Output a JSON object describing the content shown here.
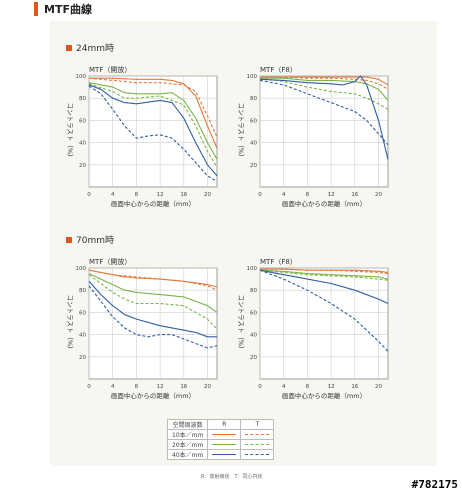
{
  "page": {
    "title": "MTF曲線",
    "sections": [
      "24mm時",
      "70mm時"
    ],
    "watermark": "#782175"
  },
  "colors": {
    "accent": "#e0571a",
    "r10": "#e07a3c",
    "r20": "#7ab648",
    "r40": "#2f5ea3"
  },
  "chart_data": [
    {
      "type": "line",
      "title": "MTF（開放）",
      "xlabel": "画面中心からの距離（mm）",
      "ylabel": "コントラスト（%）",
      "xlim": [
        0,
        21.6
      ],
      "ylim": [
        0,
        100
      ],
      "xticks": [
        0,
        4,
        8,
        12,
        16,
        20
      ],
      "yticks": [
        20,
        40,
        60,
        80,
        100
      ],
      "series": [
        {
          "name": "10本／mm R",
          "color": "#e07a3c",
          "dash": false,
          "points": [
            [
              0,
              98
            ],
            [
              4,
              98
            ],
            [
              8,
              97
            ],
            [
              12,
              97
            ],
            [
              14,
              96
            ],
            [
              16,
              93
            ],
            [
              18,
              82
            ],
            [
              20,
              55
            ],
            [
              21.6,
              35
            ]
          ]
        },
        {
          "name": "10本／mm T",
          "color": "#e07a3c",
          "dash": true,
          "points": [
            [
              0,
              98
            ],
            [
              4,
              96
            ],
            [
              8,
              94
            ],
            [
              12,
              94
            ],
            [
              16,
              92
            ],
            [
              18,
              86
            ],
            [
              20,
              64
            ],
            [
              21.6,
              45
            ]
          ]
        },
        {
          "name": "20本／mm R",
          "color": "#7ab648",
          "dash": false,
          "points": [
            [
              0,
              94
            ],
            [
              4,
              90
            ],
            [
              6,
              85
            ],
            [
              8,
              84
            ],
            [
              12,
              84
            ],
            [
              14,
              85
            ],
            [
              16,
              78
            ],
            [
              18,
              62
            ],
            [
              20,
              40
            ],
            [
              21.6,
              25
            ]
          ]
        },
        {
          "name": "20本／mm T",
          "color": "#7ab648",
          "dash": true,
          "points": [
            [
              0,
              93
            ],
            [
              4,
              86
            ],
            [
              6,
              80
            ],
            [
              8,
              80
            ],
            [
              12,
              82
            ],
            [
              16,
              74
            ],
            [
              18,
              55
            ],
            [
              20,
              32
            ],
            [
              21.6,
              18
            ]
          ]
        },
        {
          "name": "40本／mm R",
          "color": "#2f5ea3",
          "dash": false,
          "points": [
            [
              0,
              92
            ],
            [
              2,
              88
            ],
            [
              4,
              80
            ],
            [
              6,
              76
            ],
            [
              8,
              75
            ],
            [
              12,
              78
            ],
            [
              14,
              76
            ],
            [
              16,
              62
            ],
            [
              18,
              40
            ],
            [
              20,
              20
            ],
            [
              21.6,
              10
            ]
          ]
        },
        {
          "name": "40本／mm T",
          "color": "#2f5ea3",
          "dash": true,
          "points": [
            [
              0,
              91
            ],
            [
              2,
              84
            ],
            [
              4,
              70
            ],
            [
              6,
              55
            ],
            [
              8,
              44
            ],
            [
              10,
              46
            ],
            [
              12,
              47
            ],
            [
              14,
              44
            ],
            [
              16,
              34
            ],
            [
              18,
              22
            ],
            [
              20,
              10
            ],
            [
              21.6,
              5
            ]
          ]
        }
      ]
    },
    {
      "type": "line",
      "title": "MTF（F8）",
      "xlabel": "画面中心からの距離（mm）",
      "ylabel": "コントラスト（%）",
      "xlim": [
        0,
        21.6
      ],
      "ylim": [
        0,
        100
      ],
      "xticks": [
        0,
        4,
        8,
        12,
        16,
        20
      ],
      "yticks": [
        20,
        40,
        60,
        80,
        100
      ],
      "series": [
        {
          "name": "10本／mm R",
          "color": "#e07a3c",
          "dash": false,
          "points": [
            [
              0,
              99
            ],
            [
              4,
              99
            ],
            [
              8,
              99
            ],
            [
              12,
              99
            ],
            [
              16,
              99
            ],
            [
              18,
              99
            ],
            [
              20,
              97
            ],
            [
              21.6,
              92
            ]
          ]
        },
        {
          "name": "10本／mm T",
          "color": "#e07a3c",
          "dash": true,
          "points": [
            [
              0,
              99
            ],
            [
              4,
              99
            ],
            [
              8,
              98
            ],
            [
              12,
              98
            ],
            [
              16,
              97
            ],
            [
              18,
              96
            ],
            [
              20,
              93
            ],
            [
              21.6,
              88
            ]
          ]
        },
        {
          "name": "20本／mm R",
          "color": "#7ab648",
          "dash": false,
          "points": [
            [
              0,
              98
            ],
            [
              4,
              98
            ],
            [
              8,
              96
            ],
            [
              12,
              96
            ],
            [
              16,
              95
            ],
            [
              18,
              93
            ],
            [
              20,
              88
            ],
            [
              21.6,
              78
            ]
          ]
        },
        {
          "name": "20本／mm T",
          "color": "#7ab648",
          "dash": true,
          "points": [
            [
              0,
              98
            ],
            [
              4,
              95
            ],
            [
              8,
              90
            ],
            [
              12,
              86
            ],
            [
              16,
              84
            ],
            [
              18,
              80
            ],
            [
              20,
              75
            ],
            [
              21.6,
              70
            ]
          ]
        },
        {
          "name": "40本／mm R",
          "color": "#2f5ea3",
          "dash": false,
          "points": [
            [
              0,
              97
            ],
            [
              4,
              96
            ],
            [
              8,
              94
            ],
            [
              12,
              93
            ],
            [
              14,
              92
            ],
            [
              16,
              95
            ],
            [
              17,
              100
            ],
            [
              18,
              92
            ],
            [
              20,
              60
            ],
            [
              21.6,
              25
            ]
          ]
        },
        {
          "name": "40本／mm T",
          "color": "#2f5ea3",
          "dash": true,
          "points": [
            [
              0,
              96
            ],
            [
              4,
              92
            ],
            [
              8,
              84
            ],
            [
              12,
              76
            ],
            [
              16,
              68
            ],
            [
              18,
              60
            ],
            [
              20,
              48
            ],
            [
              21.6,
              38
            ]
          ]
        }
      ]
    },
    {
      "type": "line",
      "title": "MTF（開放）",
      "xlabel": "画面中心からの距離（mm）",
      "ylabel": "コントラスト（%）",
      "xlim": [
        0,
        21.6
      ],
      "ylim": [
        0,
        100
      ],
      "xticks": [
        0,
        4,
        8,
        12,
        16,
        20
      ],
      "yticks": [
        20,
        40,
        60,
        80,
        100
      ],
      "series": [
        {
          "name": "10本／mm R",
          "color": "#e07a3c",
          "dash": false,
          "points": [
            [
              0,
              98
            ],
            [
              4,
              94
            ],
            [
              6,
              92
            ],
            [
              8,
              91
            ],
            [
              12,
              90
            ],
            [
              16,
              88
            ],
            [
              20,
              85
            ],
            [
              21.6,
              83
            ]
          ]
        },
        {
          "name": "10本／mm T",
          "color": "#e07a3c",
          "dash": true,
          "points": [
            [
              0,
              98
            ],
            [
              4,
              94
            ],
            [
              8,
              92
            ],
            [
              12,
              90
            ],
            [
              16,
              88
            ],
            [
              20,
              84
            ],
            [
              21.6,
              80
            ]
          ]
        },
        {
          "name": "20本／mm R",
          "color": "#7ab648",
          "dash": false,
          "points": [
            [
              0,
              95
            ],
            [
              4,
              85
            ],
            [
              6,
              80
            ],
            [
              8,
              78
            ],
            [
              12,
              76
            ],
            [
              16,
              74
            ],
            [
              20,
              66
            ],
            [
              21.6,
              60
            ]
          ]
        },
        {
          "name": "20本／mm T",
          "color": "#7ab648",
          "dash": true,
          "points": [
            [
              0,
              94
            ],
            [
              4,
              78
            ],
            [
              6,
              72
            ],
            [
              8,
              68
            ],
            [
              12,
              68
            ],
            [
              16,
              66
            ],
            [
              20,
              54
            ],
            [
              21.6,
              45
            ]
          ]
        },
        {
          "name": "40本／mm R",
          "color": "#2f5ea3",
          "dash": false,
          "points": [
            [
              0,
              88
            ],
            [
              2,
              76
            ],
            [
              4,
              66
            ],
            [
              6,
              58
            ],
            [
              8,
              54
            ],
            [
              12,
              48
            ],
            [
              16,
              44
            ],
            [
              18,
              42
            ],
            [
              20,
              38
            ],
            [
              21.6,
              38
            ]
          ]
        },
        {
          "name": "40本／mm T",
          "color": "#2f5ea3",
          "dash": true,
          "points": [
            [
              0,
              84
            ],
            [
              2,
              70
            ],
            [
              4,
              56
            ],
            [
              6,
              46
            ],
            [
              8,
              40
            ],
            [
              10,
              38
            ],
            [
              12,
              40
            ],
            [
              14,
              40
            ],
            [
              16,
              36
            ],
            [
              18,
              32
            ],
            [
              20,
              28
            ],
            [
              21.6,
              30
            ]
          ]
        }
      ]
    },
    {
      "type": "line",
      "title": "MTF（F8）",
      "xlabel": "画面中心からの距離（mm）",
      "ylabel": "コントラスト（%）",
      "xlim": [
        0,
        21.6
      ],
      "ylim": [
        0,
        100
      ],
      "xticks": [
        0,
        4,
        8,
        12,
        16,
        20
      ],
      "yticks": [
        20,
        40,
        60,
        80,
        100
      ],
      "series": [
        {
          "name": "10本／mm R",
          "color": "#e07a3c",
          "dash": false,
          "points": [
            [
              0,
              99
            ],
            [
              4,
              99
            ],
            [
              8,
              98
            ],
            [
              12,
              98
            ],
            [
              16,
              98
            ],
            [
              20,
              97
            ],
            [
              21.6,
              96
            ]
          ]
        },
        {
          "name": "10本／mm T",
          "color": "#e07a3c",
          "dash": true,
          "points": [
            [
              0,
              99
            ],
            [
              4,
              99
            ],
            [
              8,
              98
            ],
            [
              12,
              98
            ],
            [
              16,
              97
            ],
            [
              20,
              96
            ],
            [
              21.6,
              95
            ]
          ]
        },
        {
          "name": "20本／mm R",
          "color": "#7ab648",
          "dash": false,
          "points": [
            [
              0,
              98
            ],
            [
              4,
              97
            ],
            [
              8,
              95
            ],
            [
              12,
              94
            ],
            [
              16,
              93
            ],
            [
              20,
              92
            ],
            [
              21.6,
              90
            ]
          ]
        },
        {
          "name": "20本／mm T",
          "color": "#7ab648",
          "dash": true,
          "points": [
            [
              0,
              98
            ],
            [
              4,
              96
            ],
            [
              8,
              94
            ],
            [
              12,
              93
            ],
            [
              16,
              92
            ],
            [
              20,
              90
            ],
            [
              21.6,
              89
            ]
          ]
        },
        {
          "name": "40本／mm R",
          "color": "#2f5ea3",
          "dash": false,
          "points": [
            [
              0,
              98
            ],
            [
              4,
              94
            ],
            [
              8,
              90
            ],
            [
              12,
              86
            ],
            [
              16,
              80
            ],
            [
              20,
              72
            ],
            [
              21.6,
              68
            ]
          ]
        },
        {
          "name": "40本／mm T",
          "color": "#2f5ea3",
          "dash": true,
          "points": [
            [
              0,
              98
            ],
            [
              4,
              90
            ],
            [
              8,
              80
            ],
            [
              12,
              68
            ],
            [
              16,
              54
            ],
            [
              20,
              34
            ],
            [
              21.6,
              25
            ]
          ]
        }
      ]
    }
  ],
  "legend": {
    "header": [
      "空間周波数",
      "R",
      "T"
    ],
    "rows": [
      {
        "label": "10本／mm",
        "color": "#e07a3c"
      },
      {
        "label": "20本／mm",
        "color": "#7ab648"
      },
      {
        "label": "40本／mm",
        "color": "#2f5ea3"
      }
    ],
    "note": "R：放射線状　T：同心円状"
  }
}
